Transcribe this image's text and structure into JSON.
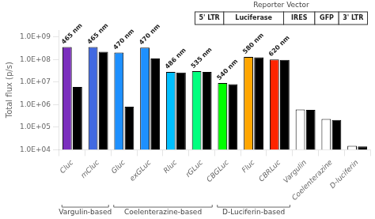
{
  "chart_data": {
    "type": "bar",
    "categories": [
      "Cluc",
      "mCluc",
      "Gluc",
      "exGLuc",
      "Rluc",
      "rGLuc",
      "CBGLuc",
      "Fluc",
      "CBRLuc",
      "Vargulin",
      "Coelenterazine",
      "D-luciferin"
    ],
    "series": [
      {
        "colors": [
          "#7B2FBE",
          "#4169E1",
          "#1E90FF",
          "#1E90FF",
          "#00BFFF",
          "#00FF7F",
          "#00FF00",
          "#FFA500",
          "#FF2400",
          "#FFFFFF",
          "#FFFFFF",
          "#FFFFFF"
        ],
        "values": [
          350000000.0,
          350000000.0,
          200000000.0,
          330000000.0,
          28000000.0,
          30000000.0,
          9000000.0,
          130000000.0,
          100000000.0,
          600000.0,
          230000.0,
          15000.0
        ]
      },
      {
        "color": "#000000",
        "values": [
          6000000.0,
          220000000.0,
          800000.0,
          110000000.0,
          26000000.0,
          28000000.0,
          8000000.0,
          125000000.0,
          95000000.0,
          580000.0,
          210000.0,
          14000.0
        ]
      }
    ],
    "ylabel": "Total flux (p/s)",
    "log": "y",
    "ylim": [
      10000.0,
      2000000000.0
    ],
    "yticks": [
      {
        "value": 10000.0,
        "label": "1.0E+04"
      },
      {
        "value": 100000.0,
        "label": "1.0E+05"
      },
      {
        "value": 1000000.0,
        "label": "1.0E+06"
      },
      {
        "value": 10000000.0,
        "label": "1.0E+07"
      },
      {
        "value": 100000000.0,
        "label": "1.0E+08"
      },
      {
        "value": 1000000000.0,
        "label": "1.0E+09"
      }
    ],
    "grid": false,
    "annotations": [
      {
        "x": "Cluc",
        "y": 350000000.0,
        "text": "465 nm"
      },
      {
        "x": "mCluc",
        "y": 350000000.0,
        "text": "465 nm"
      },
      {
        "x": "Gluc",
        "y": 200000000.0,
        "text": "470 nm"
      },
      {
        "x": "exGLuc",
        "y": 330000000.0,
        "text": "470 nm"
      },
      {
        "x": "Rluc",
        "y": 28000000.0,
        "text": "486 nm"
      },
      {
        "x": "rGLuc",
        "y": 30000000.0,
        "text": "535 nm"
      },
      {
        "x": "CBGLuc",
        "y": 9000000.0,
        "text": "540 nm"
      },
      {
        "x": "Fluc",
        "y": 130000000.0,
        "text": "580 nm"
      },
      {
        "x": "CBRLuc",
        "y": 100000000.0,
        "text": "620 nm"
      }
    ],
    "groups": [
      {
        "label": "Vargulin-based",
        "categories": [
          "Cluc",
          "mCluc"
        ]
      },
      {
        "label": "Coelenterazine-based",
        "categories": [
          "Gluc",
          "exGLuc",
          "Rluc",
          "rGLuc"
        ]
      },
      {
        "label": "D-Luciferin-based",
        "categories": [
          "CBGLuc",
          "Fluc",
          "CBRLuc"
        ]
      }
    ],
    "reporter_box": {
      "title": "Reporter Vector",
      "segments": [
        "5' LTR",
        "Luciferase",
        "IRES",
        "GFP",
        "3' LTR"
      ]
    }
  }
}
